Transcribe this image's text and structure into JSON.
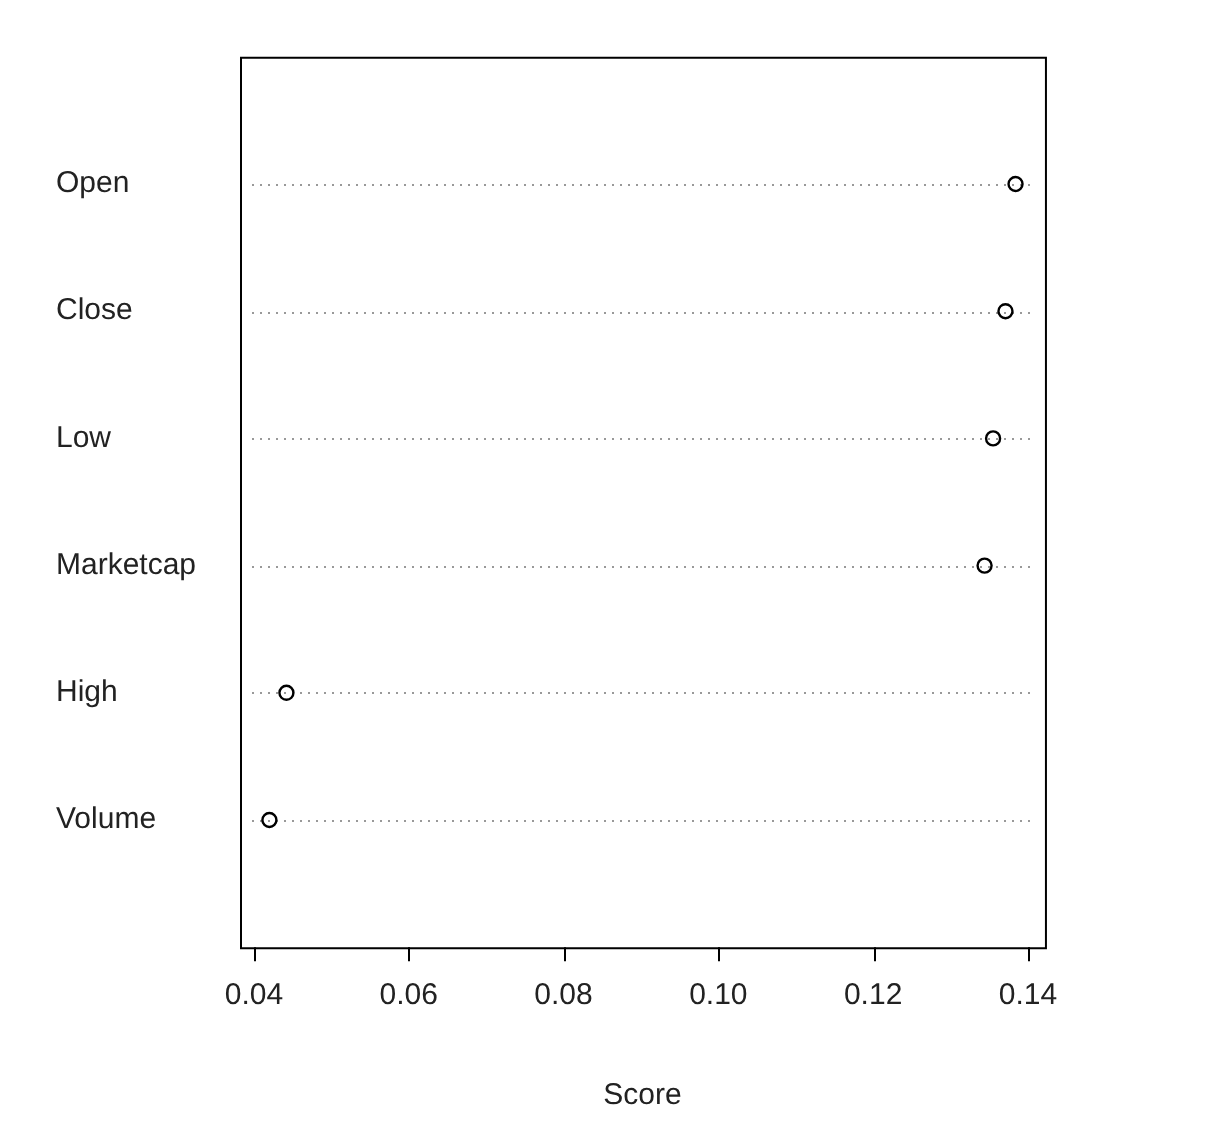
{
  "chart_data": {
    "type": "scatter",
    "orientation": "horizontal",
    "xlabel": "Score",
    "categories": [
      "Open",
      "Close",
      "Low",
      "Marketcap",
      "High",
      "Volume"
    ],
    "values": [
      0.1384,
      0.1371,
      0.1355,
      0.1344,
      0.0442,
      0.042
    ],
    "color": "#000000",
    "marker": "circle",
    "xlim": [
      0.0382,
      0.1422
    ],
    "xticks": [
      {
        "value": 0.04,
        "label": "0.04"
      },
      {
        "value": 0.06,
        "label": "0.06"
      },
      {
        "value": 0.08,
        "label": "0.08"
      },
      {
        "value": 0.1,
        "label": "0.10"
      },
      {
        "value": 0.12,
        "label": "0.12"
      },
      {
        "value": 0.14,
        "label": "0.14"
      }
    ],
    "grid": "y",
    "legend": false
  }
}
